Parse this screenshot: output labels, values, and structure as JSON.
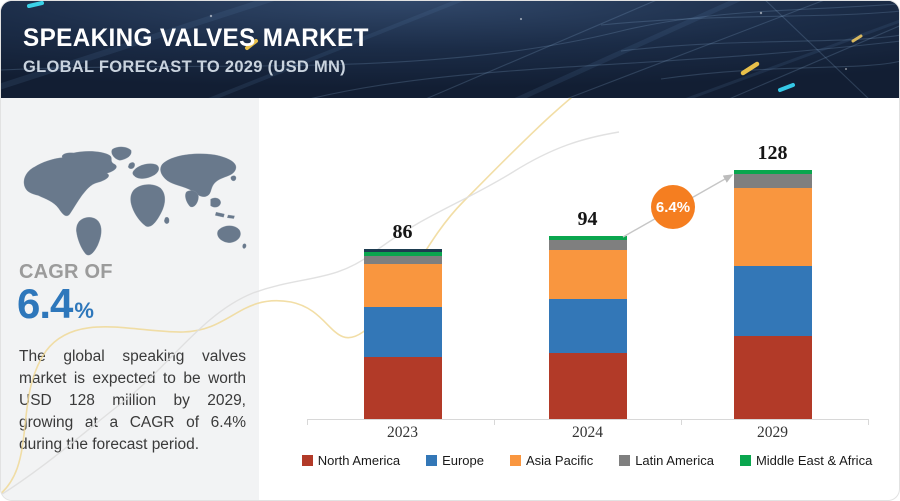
{
  "header": {
    "title": "SPEAKING VALVES MARKET",
    "subtitle": "GLOBAL FORECAST TO 2029 (USD MN)"
  },
  "sidebar": {
    "map_icon": "world-map",
    "cagr_label": "CAGR OF",
    "cagr_value": "6.4",
    "cagr_percent_sign": "%",
    "description": "The global speaking valves market is expected to be worth USD 128 million by 2029, growing at a CAGR of 6.4% during the forecast period."
  },
  "chart_data": {
    "type": "bar",
    "stacked": true,
    "unit": "USD MN",
    "categories": [
      "2023",
      "2024",
      "2029"
    ],
    "totals": [
      86,
      94,
      128
    ],
    "series": [
      {
        "name": "North America",
        "color": "#b23a28",
        "values": [
          32,
          34,
          43
        ]
      },
      {
        "name": "Europe",
        "color": "#3377b7",
        "values": [
          26,
          28,
          36
        ]
      },
      {
        "name": "Asia Pacific",
        "color": "#f9963f",
        "values": [
          22,
          25,
          40
        ]
      },
      {
        "name": "Latin America",
        "color": "#7f7f7f",
        "values": [
          4,
          5,
          7
        ]
      },
      {
        "name": "Middle East & Africa",
        "color": "#0aa64e",
        "values": [
          2,
          2,
          2
        ]
      }
    ],
    "base_year_cap_color": "#1d3c50",
    "cagr_badge": {
      "text": "6.4%",
      "color": "#f57e20"
    },
    "legend_position": "bottom",
    "grid": false,
    "ylim": [
      0,
      140
    ]
  },
  "colors": {
    "header_bg": "#16233a",
    "sidebar_bg": "#f2f3f4",
    "accent_blue": "#2e77bb",
    "cagr_gray": "#9b9b9b",
    "axis": "#d8d8d8",
    "map": "#69798c",
    "badge_orange": "#f57e20"
  }
}
